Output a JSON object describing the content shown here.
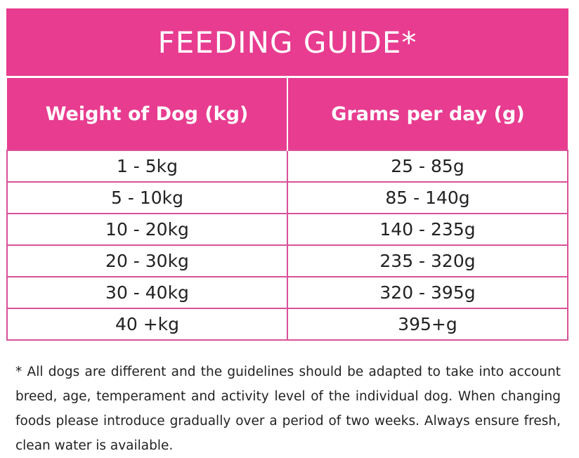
{
  "title": "FEEDING GUIDE*",
  "headers": [
    "Weight of Dog (kg)",
    "Grams per day (g)"
  ],
  "rows": [
    [
      "1 - 5kg",
      "25 - 85g"
    ],
    [
      "5 - 10kg",
      "85 - 140g"
    ],
    [
      "10 - 20kg",
      "140 - 235g"
    ],
    [
      "20 - 30kg",
      "235 - 320g"
    ],
    [
      "30 - 40kg",
      "320 - 395g"
    ],
    [
      "40 +kg",
      "395+g"
    ]
  ],
  "footnote": "* All dogs are different and the guidelines should be adapted to take into account breed, age, temperament and activity level of the individual dog. When changing foods please introduce gradually over a period of two weeks. Always ensure fresh, clean water is available."
}
